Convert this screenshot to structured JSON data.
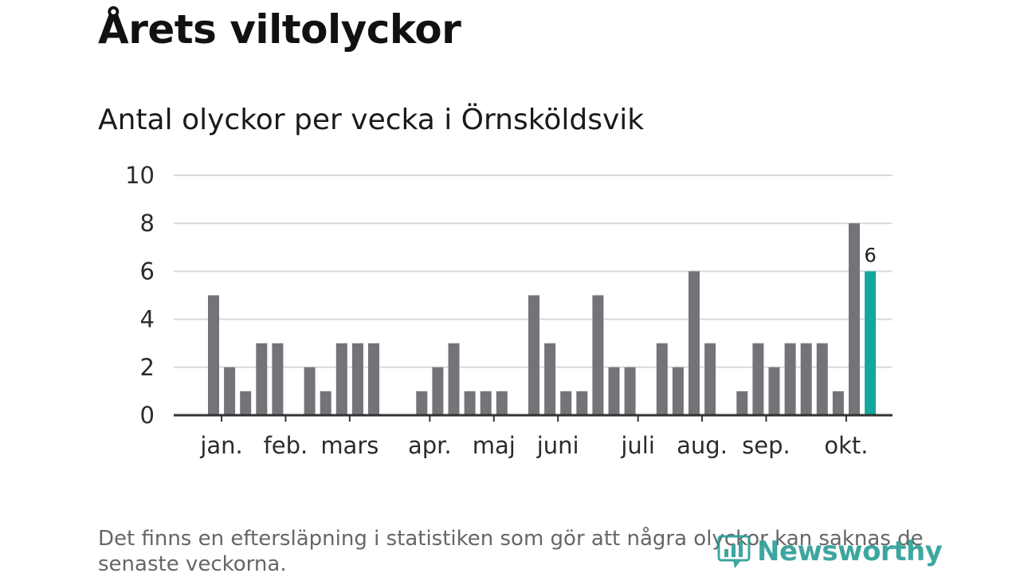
{
  "title": "Årets viltolyckor",
  "subtitle": "Antal olyckor per vecka i Örnsköldsvik",
  "footnote": "Det finns en eftersläpning i statistiken som gör att några olyckor kan saknas de senaste veckorna.",
  "logo": {
    "text": "Newsworthy",
    "icon": "newsworthy-logo-icon",
    "color": "#2a9d96"
  },
  "colors": {
    "bar": "#747378",
    "highlight": "#14a79b",
    "grid": "#d9d9d9",
    "axis": "#333333"
  },
  "chart_data": {
    "type": "bar",
    "title": "Antal olyckor per vecka i Örnsköldsvik",
    "xlabel": "",
    "ylabel": "",
    "ylim": [
      0,
      10
    ],
    "yticks": [
      0,
      2,
      4,
      6,
      8,
      10
    ],
    "grid": true,
    "weeks": [
      1,
      2,
      3,
      4,
      5,
      6,
      7,
      8,
      9,
      10,
      11,
      12,
      13,
      14,
      15,
      16,
      17,
      18,
      19,
      20,
      21,
      22,
      23,
      24,
      25,
      26,
      27,
      28,
      29,
      30,
      31,
      32,
      33,
      34,
      35,
      36,
      37,
      38,
      39,
      40,
      41,
      42
    ],
    "values": [
      5,
      2,
      1,
      3,
      3,
      0,
      2,
      1,
      3,
      3,
      3,
      0,
      0,
      1,
      2,
      3,
      1,
      1,
      1,
      0,
      5,
      3,
      1,
      1,
      5,
      2,
      2,
      0,
      3,
      2,
      6,
      3,
      0,
      1,
      3,
      2,
      3,
      3,
      3,
      1,
      8,
      6
    ],
    "highlight_index": 41,
    "data_labels": [
      {
        "index": 41,
        "text": "6"
      }
    ],
    "month_labels": [
      {
        "label": "jan.",
        "position": 0.5
      },
      {
        "label": "feb.",
        "position": 4.5
      },
      {
        "label": "mars",
        "position": 8.5
      },
      {
        "label": "apr.",
        "position": 13.5
      },
      {
        "label": "maj",
        "position": 17.5
      },
      {
        "label": "juni",
        "position": 21.5
      },
      {
        "label": "juli",
        "position": 26.5
      },
      {
        "label": "aug.",
        "position": 30.5
      },
      {
        "label": "sep.",
        "position": 34.5
      },
      {
        "label": "okt.",
        "position": 39.5
      }
    ]
  }
}
